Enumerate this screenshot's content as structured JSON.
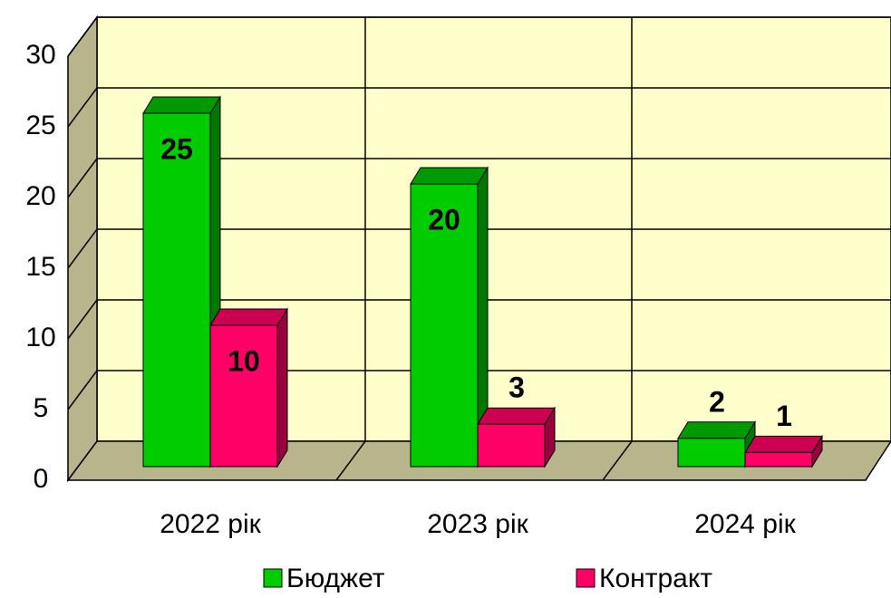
{
  "chart_data": {
    "type": "bar3d",
    "categories": [
      "2022 рік",
      "2023 рік",
      "2024 рік"
    ],
    "series": [
      {
        "name": "Бюджет",
        "color": "#00cc00",
        "values": [
          25,
          20,
          2
        ]
      },
      {
        "name": "Контракт",
        "color": "#ff0066",
        "values": [
          10,
          3,
          1
        ]
      }
    ],
    "ylim": [
      0,
      30
    ],
    "yticks": [
      0,
      5,
      10,
      15,
      20,
      25,
      30
    ],
    "grid": true
  }
}
